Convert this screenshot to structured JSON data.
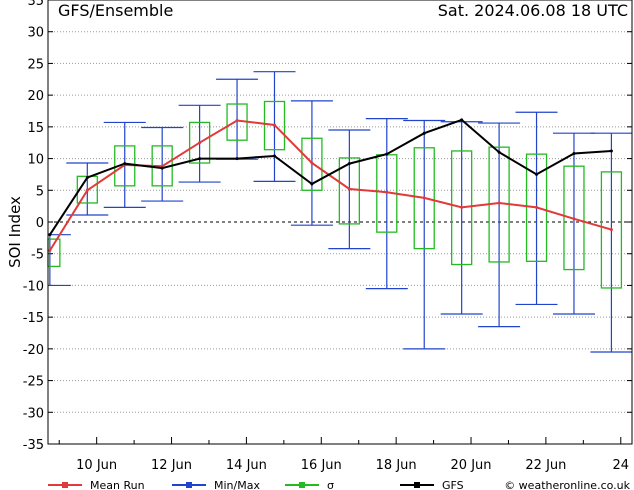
{
  "header": {
    "title": "GFS/Ensemble",
    "datetime": "Sat. 2024.06.08   18 UTC"
  },
  "credit": "© weatheronline.co.uk",
  "chart_data": {
    "type": "line",
    "ylabel": "SOI Index",
    "ylim": [
      -35,
      35
    ],
    "yticks": [
      -35,
      -30,
      -25,
      -20,
      -15,
      -10,
      -5,
      0,
      5,
      10,
      15,
      20,
      25,
      30,
      35
    ],
    "xrange": [
      8.7,
      24.3
    ],
    "xticks": [
      {
        "day": 10,
        "label": "10 Jun"
      },
      {
        "day": 12,
        "label": "12 Jun"
      },
      {
        "day": 14,
        "label": "14 Jun"
      },
      {
        "day": 16,
        "label": "16 Jun"
      },
      {
        "day": 18,
        "label": "18 Jun"
      },
      {
        "day": 20,
        "label": "20 Jun"
      },
      {
        "day": 22,
        "label": "22 Jun"
      },
      {
        "day": 24,
        "label": "24"
      }
    ],
    "grid": true,
    "legend": [
      {
        "name": "Mean Run",
        "color": "#e03a3a"
      },
      {
        "name": "Min/Max",
        "color": "#2244cc"
      },
      {
        "name": "σ",
        "color": "#22bb22"
      },
      {
        "name": "GFS",
        "color": "#000000"
      }
    ],
    "x": [
      8.75,
      9.75,
      10.75,
      11.75,
      12.75,
      13.75,
      14.75,
      15.75,
      16.75,
      17.75,
      18.75,
      19.75,
      20.75,
      21.75,
      22.75,
      23.75
    ],
    "mean_run": [
      -4.5,
      5,
      9,
      8.8,
      12.5,
      16,
      15.3,
      9.3,
      5.2,
      4.7,
      3.8,
      2.3,
      3,
      2.3,
      0.5,
      -1.2
    ],
    "gfs": [
      -2,
      7,
      9.2,
      8.5,
      10,
      10,
      10.4,
      6,
      9.2,
      10.7,
      14,
      16.1,
      11,
      7.5,
      10.8,
      11.2
    ],
    "min": [
      -10,
      1.1,
      2.3,
      3.3,
      6.3,
      9.9,
      6.4,
      -0.5,
      -4.2,
      -10.5,
      -20,
      -14.5,
      -16.5,
      -13,
      -14.5,
      -20.5
    ],
    "max": [
      -2,
      9.3,
      15.7,
      14.9,
      18.4,
      22.5,
      23.7,
      19.1,
      14.5,
      16.3,
      16,
      15.8,
      15.6,
      17.3,
      14,
      14
    ],
    "sigma_low": [
      -7,
      3,
      5.7,
      5.7,
      9.3,
      12.9,
      11.4,
      5,
      -0.3,
      -1.6,
      -4.2,
      -6.7,
      -6.3,
      -6.2,
      -7.5,
      -10.4
    ],
    "sigma_high": [
      -2.7,
      7.2,
      12,
      12,
      15.7,
      18.6,
      19,
      13.2,
      10.1,
      10.6,
      11.7,
      11.2,
      11.8,
      10.7,
      8.8,
      7.9
    ]
  }
}
